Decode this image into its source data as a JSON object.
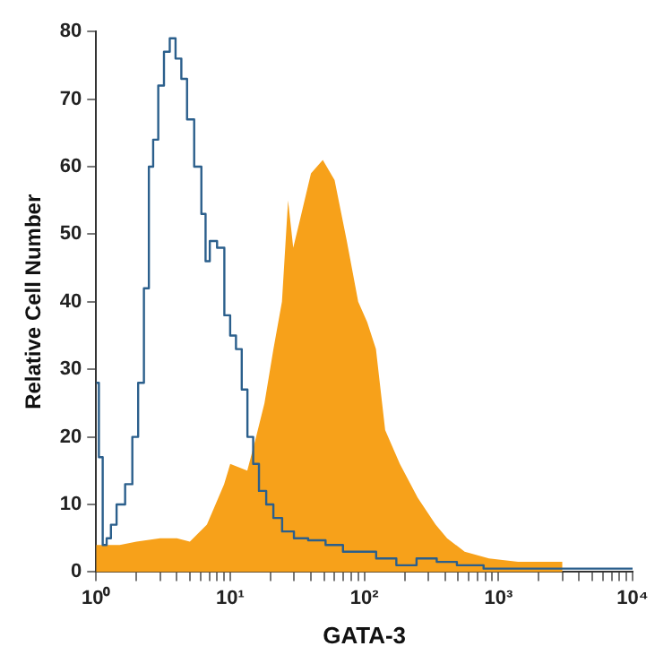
{
  "chart_data": {
    "type": "line",
    "xlabel": "GATA-3",
    "ylabel": "Relative Cell Number",
    "log": "x",
    "grid": false,
    "legend": false,
    "marker": "none",
    "xlim": [
      1,
      10000
    ],
    "xticks": [
      {
        "value": 1,
        "label": "10⁰"
      },
      {
        "value": 2,
        "label": null
      },
      {
        "value": 3,
        "label": null
      },
      {
        "value": 4,
        "label": null
      },
      {
        "value": 5,
        "label": null
      },
      {
        "value": 6,
        "label": null
      },
      {
        "value": 7,
        "label": null
      },
      {
        "value": 8,
        "label": null
      },
      {
        "value": 9,
        "label": null
      },
      {
        "value": 10,
        "label": "10¹"
      },
      {
        "value": 20,
        "label": null
      },
      {
        "value": 30,
        "label": null
      },
      {
        "value": 40,
        "label": null
      },
      {
        "value": 50,
        "label": null
      },
      {
        "value": 60,
        "label": null
      },
      {
        "value": 70,
        "label": null
      },
      {
        "value": 80,
        "label": null
      },
      {
        "value": 90,
        "label": null
      },
      {
        "value": 100,
        "label": "10²"
      },
      {
        "value": 200,
        "label": null
      },
      {
        "value": 300,
        "label": null
      },
      {
        "value": 400,
        "label": null
      },
      {
        "value": 500,
        "label": null
      },
      {
        "value": 600,
        "label": null
      },
      {
        "value": 700,
        "label": null
      },
      {
        "value": 800,
        "label": null
      },
      {
        "value": 900,
        "label": null
      },
      {
        "value": 1000,
        "label": "10³"
      },
      {
        "value": 2000,
        "label": null
      },
      {
        "value": 3000,
        "label": null
      },
      {
        "value": 4000,
        "label": null
      },
      {
        "value": 5000,
        "label": null
      },
      {
        "value": 6000,
        "label": null
      },
      {
        "value": 7000,
        "label": null
      },
      {
        "value": 8000,
        "label": null
      },
      {
        "value": 9000,
        "label": null
      },
      {
        "value": 10000,
        "label": "10⁴"
      }
    ],
    "ylim": [
      0,
      80
    ],
    "yticks": [
      0,
      10,
      20,
      30,
      40,
      50,
      60,
      70,
      80
    ],
    "series": [
      {
        "type": "area",
        "color": "#f7a11a",
        "x": [
          1,
          1.5,
          2,
          3,
          4,
          5,
          6.7,
          9,
          10,
          13.4,
          15.6,
          18,
          21,
          24.3,
          27,
          29.5,
          33,
          40,
          49,
          60,
          74,
          90,
          105,
          122,
          143,
          184,
          250,
          340,
          414,
          560,
          850,
          1400,
          3000
        ],
        "values": [
          4,
          4,
          4.5,
          5,
          5,
          4.5,
          7,
          13,
          16,
          15,
          20,
          25,
          33,
          40,
          55,
          48,
          52,
          59,
          61,
          58,
          49,
          40,
          37,
          33,
          21,
          16,
          11,
          7,
          5,
          3,
          2,
          1.5,
          1.5
        ]
      },
      {
        "type": "step",
        "color": "#2b5f8c",
        "x": [
          1,
          1.1,
          1.14,
          1.26,
          1.32,
          1.53,
          1.77,
          1.96,
          2.16,
          2.39,
          2.56,
          2.77,
          3.05,
          3.37,
          3.72,
          4.11,
          4.54,
          5,
          5.8,
          6.4,
          6.7,
          7.4,
          8.6,
          9.5,
          10.5,
          11.6,
          12.8,
          14.1,
          15.6,
          17.2,
          20,
          22,
          27,
          33,
          44,
          60,
          80,
          100,
          150,
          200,
          300,
          400,
          600,
          1000,
          10000
        ],
        "values": [
          28,
          17,
          4,
          5,
          7,
          10,
          13,
          20,
          28,
          42,
          60,
          64,
          72,
          77,
          79,
          76,
          73,
          67,
          60,
          53,
          46,
          49,
          48,
          38,
          35,
          33,
          27,
          20,
          16,
          12,
          10,
          8,
          6,
          5,
          4.7,
          4,
          3,
          3,
          2,
          1,
          2,
          1.5,
          1,
          0.5,
          0.5
        ]
      }
    ]
  }
}
